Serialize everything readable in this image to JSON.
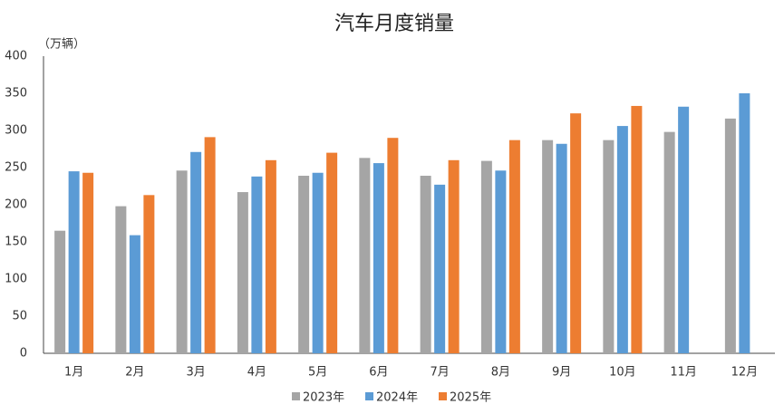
{
  "chart_data": {
    "type": "bar",
    "title": "汽车月度销量",
    "y_label": "（万辆）",
    "categories": [
      "1月",
      "2月",
      "3月",
      "4月",
      "5月",
      "6月",
      "7月",
      "8月",
      "9月",
      "10月",
      "11月",
      "12月"
    ],
    "series": [
      {
        "name": "2023年",
        "color": "#a5a5a5",
        "values": [
          165,
          198,
          246,
          217,
          239,
          263,
          239,
          259,
          287,
          287,
          298,
          316
        ]
      },
      {
        "name": "2024年",
        "color": "#5b9bd5",
        "values": [
          245,
          159,
          271,
          238,
          243,
          256,
          227,
          246,
          282,
          306,
          332,
          350
        ]
      },
      {
        "name": "2025年",
        "color": "#ed7d31",
        "values": [
          243,
          213,
          291,
          260,
          270,
          290,
          260,
          287,
          323,
          333,
          null,
          null
        ]
      }
    ],
    "ylim": [
      0,
      400
    ],
    "yticks": [
      0,
      50,
      100,
      150,
      200,
      250,
      300,
      350,
      400
    ],
    "grid": false,
    "legend": "bottom"
  }
}
